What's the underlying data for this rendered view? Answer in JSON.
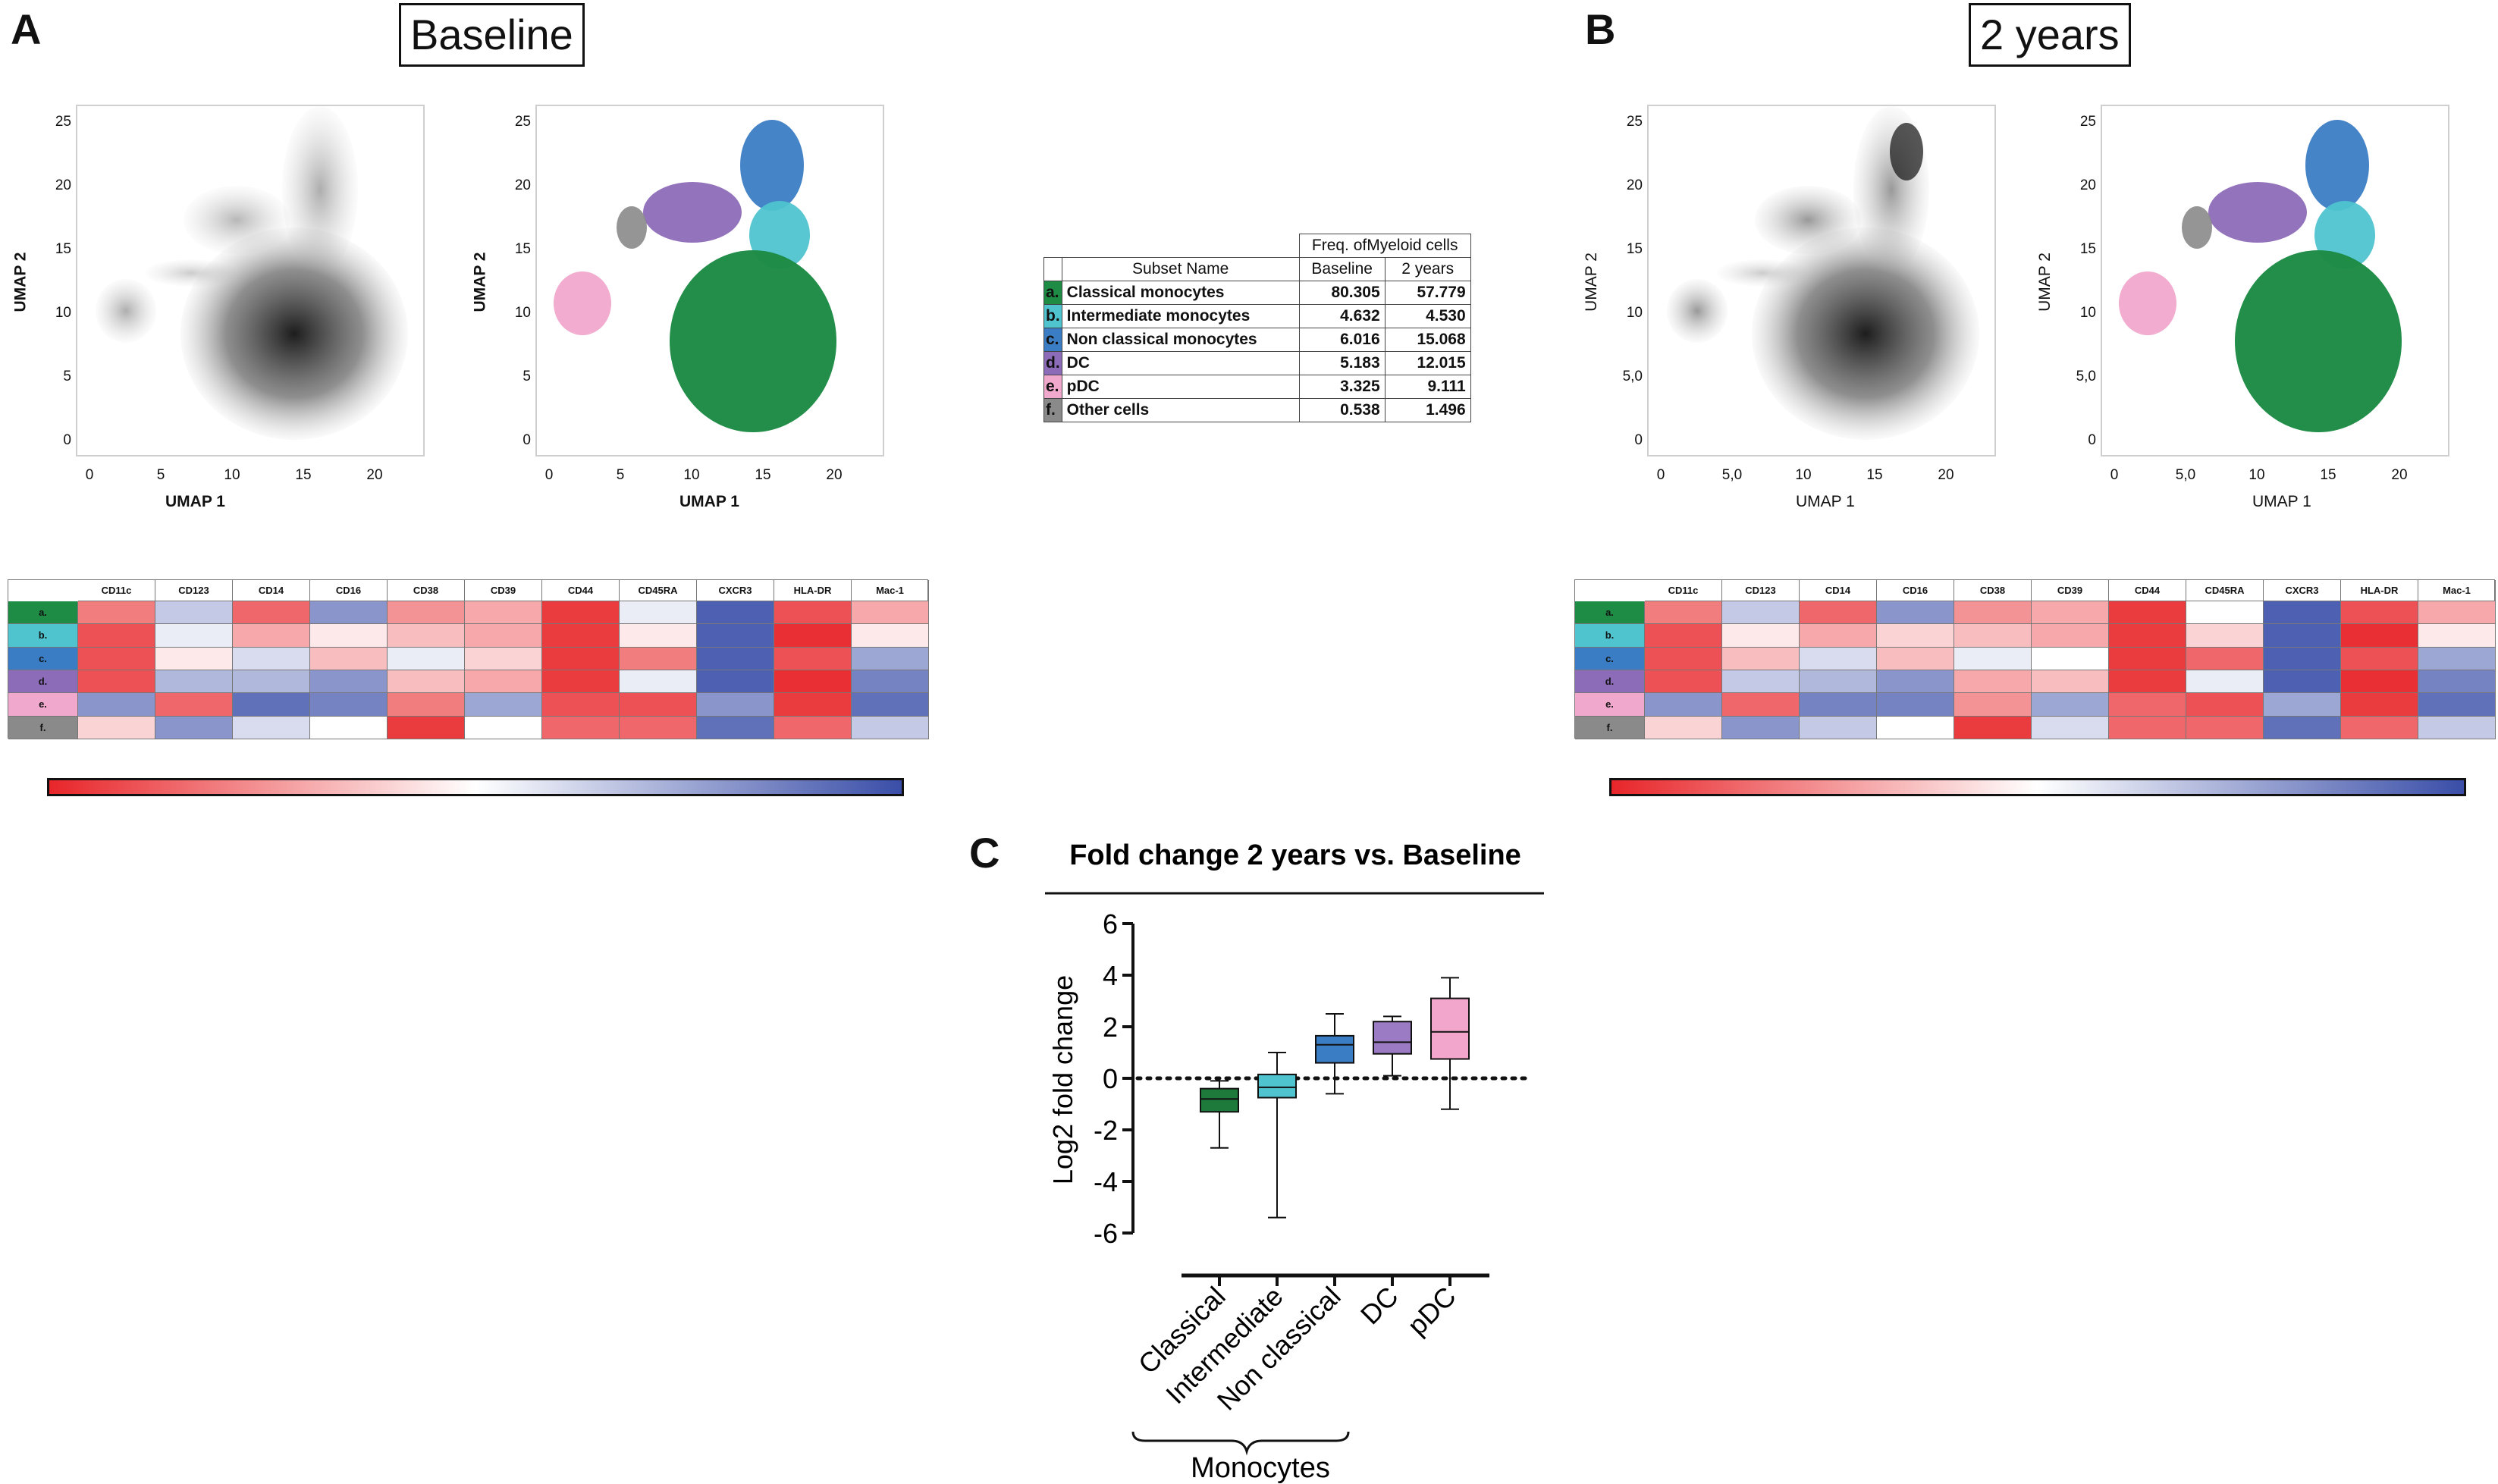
{
  "panels": {
    "a_letter": "A",
    "b_letter": "B",
    "c_letter": "C",
    "a_title": "Baseline",
    "b_title": "2 years"
  },
  "umap": {
    "x_label": "UMAP 1",
    "y_label": "UMAP 2",
    "a_y_ticks": [
      "0",
      "5",
      "10",
      "15",
      "20",
      "25"
    ],
    "a_x_ticks": [
      "0",
      "5",
      "10",
      "15",
      "20"
    ],
    "b_y_ticks": [
      "0",
      "5,0",
      "10",
      "15",
      "20",
      "25"
    ],
    "b_x_ticks": [
      "0",
      "5,0",
      "10",
      "15",
      "20"
    ]
  },
  "freq_table": {
    "group_header": "Freq. ofMyeloid cells",
    "col_subset": "Subset Name",
    "col_baseline": "Baseline",
    "col_2years": "2 years",
    "rows": [
      {
        "letter": "a.",
        "name": "Classical monocytes",
        "baseline": "80.305",
        "two_years": "57.779",
        "color": "#1e8c45"
      },
      {
        "letter": "b.",
        "name": "Intermediate monocytes",
        "baseline": "4.632",
        "two_years": "4.530",
        "color": "#4fc4cf"
      },
      {
        "letter": "c.",
        "name": "Non classical monocytes",
        "baseline": "6.016",
        "two_years": "15.068",
        "color": "#3b7dc4"
      },
      {
        "letter": "d.",
        "name": "DC",
        "baseline": "5.183",
        "two_years": "12.015",
        "color": "#8c6bb8"
      },
      {
        "letter": "e.",
        "name": "pDC",
        "baseline": "3.325",
        "two_years": "9.111",
        "color": "#f0a8cc"
      },
      {
        "letter": "f.",
        "name": "Other cells",
        "baseline": "0.538",
        "two_years": "1.496",
        "color": "#8a8a8a"
      }
    ]
  },
  "heatmap": {
    "markers": [
      "CD11c",
      "CD123",
      "CD14",
      "CD16",
      "CD38",
      "CD39",
      "CD44",
      "CD45RA",
      "CXCR3",
      "HLA-DR",
      "Mac-1"
    ],
    "rows": [
      "a.",
      "b.",
      "c.",
      "d.",
      "e.",
      "f."
    ],
    "row_colors": [
      "#1e8c45",
      "#4fc4cf",
      "#3b7dc4",
      "#8c6bb8",
      "#f0a8cc",
      "#8a8a8a"
    ],
    "baseline_values": [
      [
        0.2,
        0.65,
        0.15,
        0.8,
        0.25,
        0.3,
        0.05,
        0.55,
        0.95,
        0.1,
        0.3
      ],
      [
        0.1,
        0.55,
        0.3,
        0.45,
        0.35,
        0.3,
        0.05,
        0.45,
        0.95,
        0.02,
        0.45
      ],
      [
        0.1,
        0.45,
        0.6,
        0.35,
        0.55,
        0.4,
        0.05,
        0.2,
        0.95,
        0.1,
        0.75
      ],
      [
        0.1,
        0.7,
        0.7,
        0.8,
        0.35,
        0.3,
        0.05,
        0.55,
        0.95,
        0.02,
        0.85
      ],
      [
        0.8,
        0.15,
        0.9,
        0.85,
        0.2,
        0.75,
        0.1,
        0.1,
        0.8,
        0.05,
        0.9
      ],
      [
        0.4,
        0.8,
        0.6,
        0.5,
        0.05,
        0.5,
        0.15,
        0.15,
        0.9,
        0.15,
        0.65
      ]
    ],
    "two_years_values": [
      [
        0.2,
        0.65,
        0.15,
        0.8,
        0.25,
        0.3,
        0.05,
        0.5,
        0.95,
        0.1,
        0.3
      ],
      [
        0.1,
        0.45,
        0.3,
        0.4,
        0.35,
        0.3,
        0.05,
        0.4,
        0.95,
        0.02,
        0.45
      ],
      [
        0.1,
        0.35,
        0.6,
        0.35,
        0.55,
        0.5,
        0.05,
        0.15,
        0.95,
        0.1,
        0.75
      ],
      [
        0.1,
        0.65,
        0.7,
        0.8,
        0.3,
        0.35,
        0.05,
        0.55,
        0.95,
        0.02,
        0.85
      ],
      [
        0.8,
        0.15,
        0.85,
        0.85,
        0.25,
        0.75,
        0.15,
        0.1,
        0.75,
        0.05,
        0.9
      ],
      [
        0.4,
        0.8,
        0.65,
        0.5,
        0.05,
        0.6,
        0.15,
        0.15,
        0.9,
        0.15,
        0.65
      ]
    ]
  },
  "chart_data": {
    "type": "box",
    "title": "Fold change 2 years vs. Baseline",
    "xlabel": "",
    "ylabel": "Log2 fold change",
    "ylim": [
      -6,
      6
    ],
    "yticks": [
      -6,
      -4,
      -2,
      0,
      2,
      4,
      6
    ],
    "reference_line": 0,
    "group_label": "Monocytes",
    "categories": [
      "Classical",
      "Intermediate",
      "Non classical",
      "DC",
      "pDC"
    ],
    "boxes": [
      {
        "name": "Classical",
        "min": -2.7,
        "q1": -1.3,
        "median": -0.8,
        "q3": -0.4,
        "max": -0.1,
        "color": "#1e7a3a"
      },
      {
        "name": "Intermediate",
        "min": -5.4,
        "q1": -0.75,
        "median": -0.35,
        "q3": 0.15,
        "max": 1.0,
        "color": "#4fc4cf"
      },
      {
        "name": "Non classical",
        "min": -0.6,
        "q1": 0.6,
        "median": 1.3,
        "q3": 1.65,
        "max": 2.5,
        "color": "#3b7dc4"
      },
      {
        "name": "DC",
        "min": 0.1,
        "q1": 0.95,
        "median": 1.4,
        "q3": 2.2,
        "max": 2.4,
        "color": "#9b7cc4"
      },
      {
        "name": "pDC",
        "min": -1.2,
        "q1": 0.75,
        "median": 1.8,
        "q3": 3.1,
        "max": 3.9,
        "color": "#f2a6cb"
      }
    ]
  },
  "colorbar": {
    "colors": [
      "#e8262a",
      "#ffffff",
      "#3a4ea8"
    ]
  }
}
